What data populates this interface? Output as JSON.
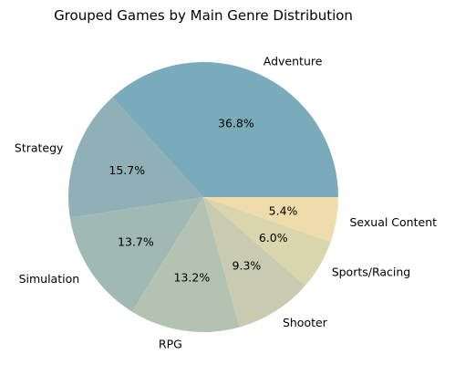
{
  "chart_data": {
    "type": "pie",
    "title": "Grouped Games by Main Genre Distribution",
    "slices": [
      {
        "label": "Adventure",
        "value": 36.8,
        "pct_label": "36.8%",
        "color": "#7aabba"
      },
      {
        "label": "Strategy",
        "value": 15.7,
        "pct_label": "15.7%",
        "color": "#8eb0b6"
      },
      {
        "label": "Simulation",
        "value": 13.7,
        "pct_label": "13.7%",
        "color": "#a0b9b4"
      },
      {
        "label": "RPG",
        "value": 13.2,
        "pct_label": "13.2%",
        "color": "#b4c3b1"
      },
      {
        "label": "Shooter",
        "value": 9.3,
        "pct_label": "9.3%",
        "color": "#c8cbb0"
      },
      {
        "label": "Sports/Racing",
        "value": 6.0,
        "pct_label": "6.0%",
        "color": "#d9d5ac"
      },
      {
        "label": "Sexual Content",
        "value": 5.4,
        "pct_label": "5.4%",
        "color": "#efdcaa"
      }
    ],
    "start_angle_deg": 0,
    "direction": "counterclockwise",
    "legend": "none"
  }
}
